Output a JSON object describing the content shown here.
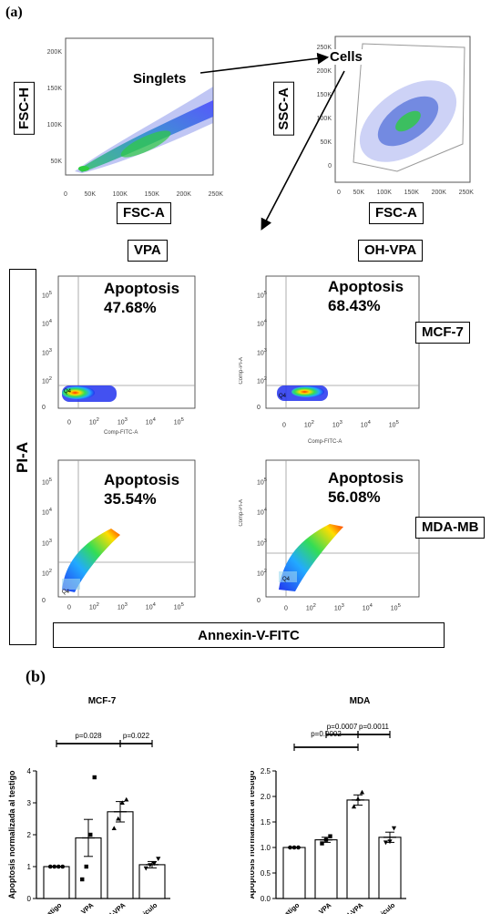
{
  "panel_a": {
    "letter": "(a)",
    "gating": {
      "singlets_label": "Singlets",
      "cells_label": "Cells",
      "plot1": {
        "ylabel": "FSC-H",
        "xlabel": "FSC-A",
        "yticks": [
          "50K",
          "100K",
          "150K",
          "200K"
        ],
        "xticks": [
          "0",
          "50K",
          "100K",
          "150K",
          "200K",
          "250K"
        ]
      },
      "plot2": {
        "ylabel": "SSC-A",
        "xlabel": "FSC-A",
        "yticks": [
          "0",
          "50K",
          "100K",
          "150K",
          "200K",
          "250K"
        ],
        "xticks": [
          "0",
          "50K",
          "100K",
          "150K",
          "200K",
          "250K"
        ]
      }
    },
    "columns": [
      "VPA",
      "OH-VPA"
    ],
    "rows": [
      "MCF-7",
      "MDA-MB"
    ],
    "y_axis_label": "PI-A",
    "x_axis_label": "Annexin-V-FITC",
    "apoptosis_word": "Apoptosis",
    "quad_label": "Q4",
    "axis_small_x": "Comp-FITC-A",
    "axis_small_y": "Comp-PI-A",
    "cells": [
      {
        "pct": "47.68%"
      },
      {
        "pct": "68.43%"
      },
      {
        "pct": "35.54%"
      },
      {
        "pct": "56.08%"
      }
    ]
  },
  "chart_data": [
    {
      "type": "bar",
      "title": "MCF-7",
      "ylabel": "Apoptosis normalizada al testigo",
      "categories": [
        "Testigo",
        "VPA",
        "OH-VPA",
        "vehiculo"
      ],
      "values": [
        1.0,
        1.9,
        2.72,
        1.06
      ],
      "error": [
        0.0,
        0.58,
        0.32,
        0.1
      ],
      "points": [
        [
          1,
          1,
          1,
          1
        ],
        [
          0.6,
          1.0,
          2.0,
          3.8
        ],
        [
          2.2,
          2.5,
          3.0,
          3.1
        ],
        [
          0.95,
          1.05,
          1.1,
          1.25
        ]
      ],
      "ylim": [
        0,
        4
      ],
      "yticks": [
        0,
        1,
        2,
        3,
        4
      ],
      "pvalues": [
        {
          "text": "p=0.028",
          "from": 0,
          "to": 2
        },
        {
          "text": "p=0.022",
          "from": 2,
          "to": 3
        }
      ]
    },
    {
      "type": "bar",
      "title": "MDA",
      "ylabel": "Apoptosis normalizada al testigo",
      "categories": [
        "Testigo",
        "VPA",
        "OH-VPA",
        "vehiculo"
      ],
      "values": [
        1.0,
        1.15,
        1.93,
        1.2
      ],
      "error": [
        0.0,
        0.05,
        0.1,
        0.1
      ],
      "points": [
        [
          1,
          1,
          1
        ],
        [
          1.08,
          1.15,
          1.22
        ],
        [
          1.8,
          1.95,
          2.08
        ],
        [
          1.1,
          1.12,
          1.38
        ]
      ],
      "ylim": [
        0,
        2.5
      ],
      "yticks": [
        0.0,
        0.5,
        1.0,
        1.5,
        2.0,
        2.5
      ],
      "pvalues": [
        {
          "text": "p=0.0002",
          "from": 0,
          "to": 2
        },
        {
          "text": "p=0.0007",
          "from": 1,
          "to": 2
        },
        {
          "text": "p=0.0011",
          "from": 2,
          "to": 3
        }
      ]
    }
  ],
  "panel_b": {
    "letter": "(b)"
  }
}
